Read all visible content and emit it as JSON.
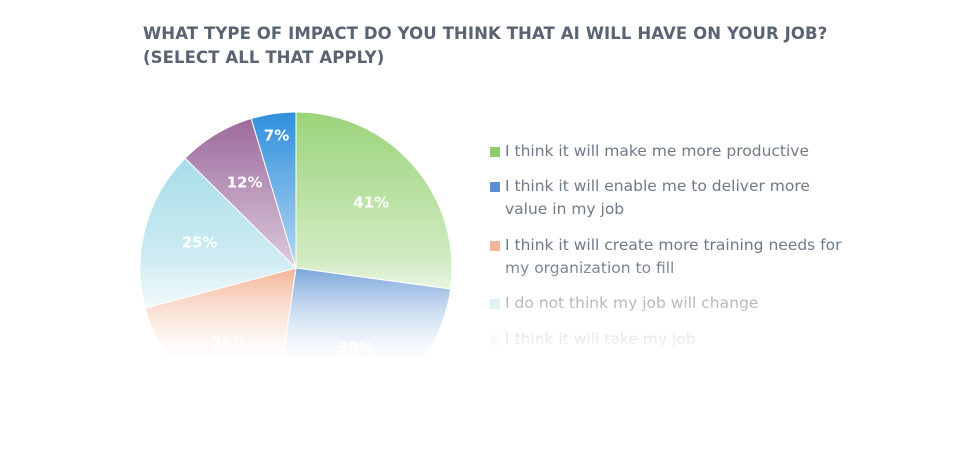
{
  "chart_data": {
    "type": "pie",
    "title_lines": [
      "WHAT TYPE OF IMPACT DO YOU THINK THAT AI WILL HAVE ON YOUR JOB?",
      "(SELECT ALL THAT APPLY)"
    ],
    "slices": [
      {
        "name": "I think it will make me more productive",
        "value": 41,
        "label": "41%",
        "color": "#9bd47a"
      },
      {
        "name": "I think it will enable me to deliver more value in my job",
        "value": 38,
        "label": "38%",
        "color": "#6f9ed8"
      },
      {
        "name": "I think it will create more training needs for my organization to fill",
        "value": 28,
        "label": "28%",
        "color": "#f2ad8c"
      },
      {
        "name": "I do not think my job will change",
        "value": 25,
        "label": "25%",
        "color": "#a8dde9"
      },
      {
        "name": "I think it will take my job",
        "value": 12,
        "label": "12%",
        "color": "#9b6a9c"
      },
      {
        "name": "",
        "value": 7,
        "label": "7%",
        "color": "#2f8fdc"
      }
    ],
    "legend": [
      {
        "text": "I think it will make me more productive",
        "color": "#8fcf6a"
      },
      {
        "text": "I think it will enable me to deliver more value in my job",
        "color": "#5b8fd0"
      },
      {
        "text": "I think it will create more training needs for my organization to fill",
        "color": "#f3b596"
      },
      {
        "text": "I do not think my job will change",
        "color": "#bfe6ee"
      },
      {
        "text": "I think it will take my job",
        "color": "#e6e6e6"
      }
    ],
    "legend_position": "right"
  }
}
